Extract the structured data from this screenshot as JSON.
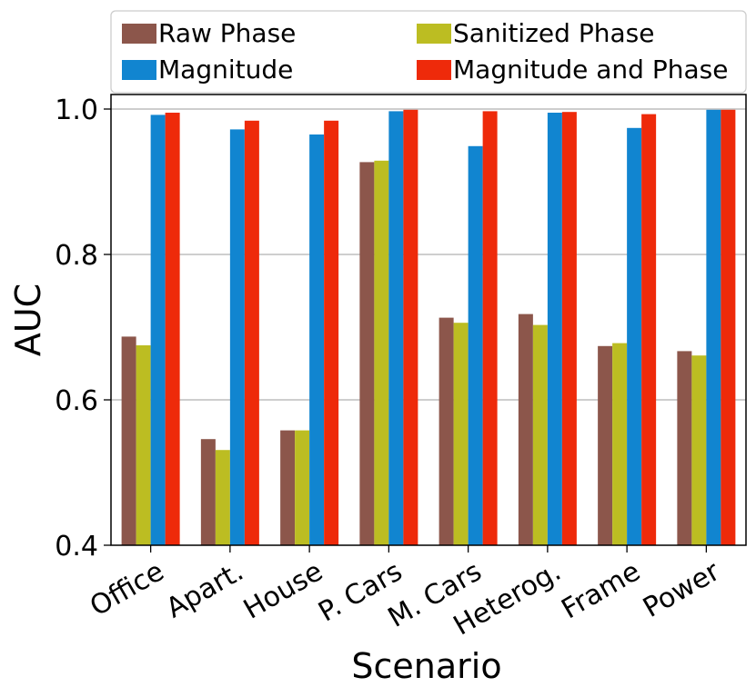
{
  "chart_data": {
    "type": "bar",
    "title": "",
    "xlabel": "Scenario",
    "ylabel": "AUC",
    "ylim": [
      0.4,
      1.02
    ],
    "yticks": [
      0.4,
      0.6,
      0.8,
      1.0
    ],
    "ytick_labels": [
      "0.4",
      "0.6",
      "0.8",
      "1.0"
    ],
    "grid": "horizontal",
    "legend_position": "top",
    "categories": [
      "Office",
      "Apart.",
      "House",
      "P. Cars",
      "M. Cars",
      "Heterog.",
      "Frame",
      "Power"
    ],
    "series": [
      {
        "name": "Raw Phase",
        "color": "#8c564b",
        "values": [
          0.687,
          0.546,
          0.558,
          0.927,
          0.713,
          0.718,
          0.674,
          0.667
        ]
      },
      {
        "name": "Sanitized Phase",
        "color": "#bcbd22",
        "values": [
          0.675,
          0.531,
          0.558,
          0.929,
          0.706,
          0.703,
          0.678,
          0.661
        ]
      },
      {
        "name": "Magnitude",
        "color": "#1185d0",
        "values": [
          0.992,
          0.972,
          0.965,
          0.997,
          0.949,
          0.995,
          0.974,
          0.999
        ]
      },
      {
        "name": "Magnitude and Phase",
        "color": "#ee2a0a",
        "values": [
          0.995,
          0.984,
          0.984,
          0.999,
          0.997,
          0.996,
          0.993,
          0.999
        ]
      }
    ]
  }
}
